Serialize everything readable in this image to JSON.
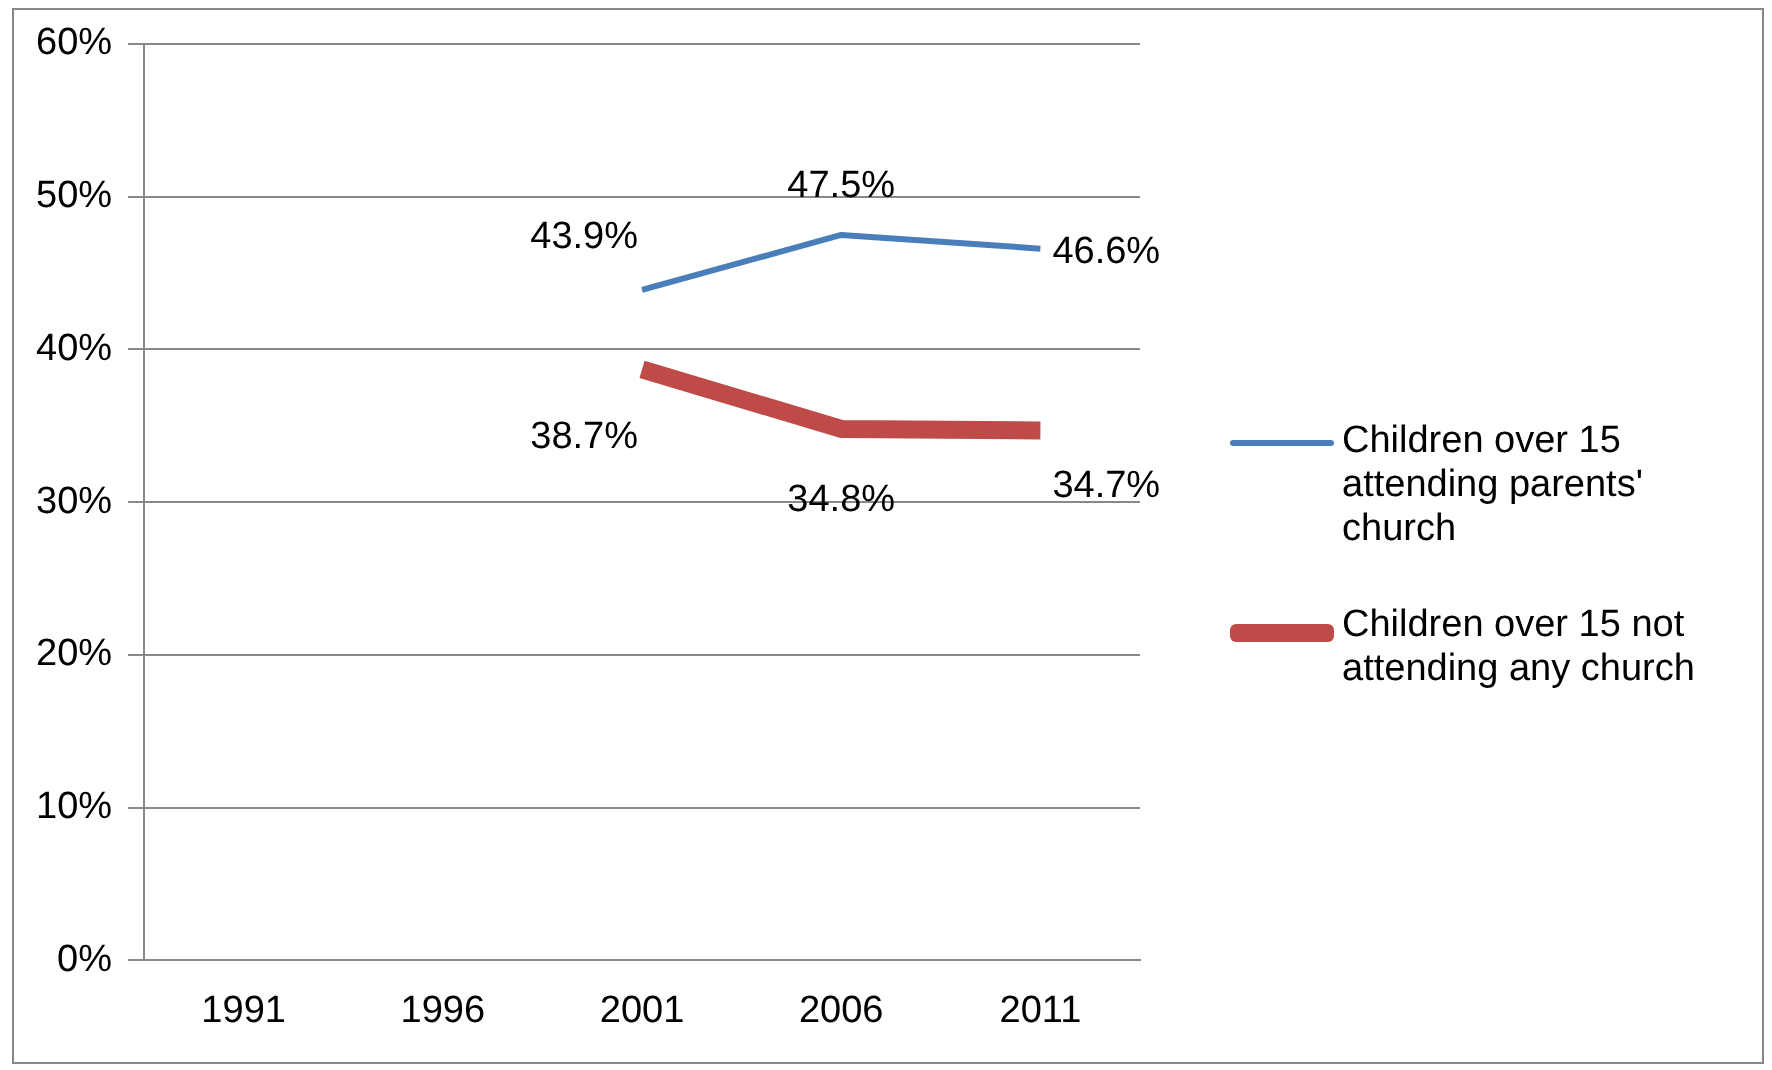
{
  "chart_data": {
    "type": "line",
    "categories": [
      "1991",
      "1996",
      "2001",
      "2006",
      "2011"
    ],
    "series": [
      {
        "name": "Children over 15 attending parents' church",
        "color": "#4a7ebb",
        "values": [
          null,
          null,
          43.9,
          47.5,
          46.6
        ],
        "value_labels": [
          null,
          null,
          "43.9%",
          "47.5%",
          "46.6%"
        ]
      },
      {
        "name": "Children over 15 not attending any church",
        "color": "#be4b48",
        "values": [
          null,
          null,
          38.7,
          34.8,
          34.7
        ],
        "value_labels": [
          null,
          null,
          "38.7%",
          "34.8%",
          "34.7%"
        ]
      }
    ],
    "ylim": [
      0,
      60
    ],
    "yticks": [
      {
        "value": 0,
        "label": "0%"
      },
      {
        "value": 10,
        "label": "10%"
      },
      {
        "value": 20,
        "label": "20%"
      },
      {
        "value": 30,
        "label": "30%"
      },
      {
        "value": 40,
        "label": "40%"
      },
      {
        "value": 50,
        "label": "50%"
      },
      {
        "value": 60,
        "label": "60%"
      }
    ],
    "grid": "y",
    "legend": "right",
    "marker": "none",
    "line_style": "solid"
  }
}
